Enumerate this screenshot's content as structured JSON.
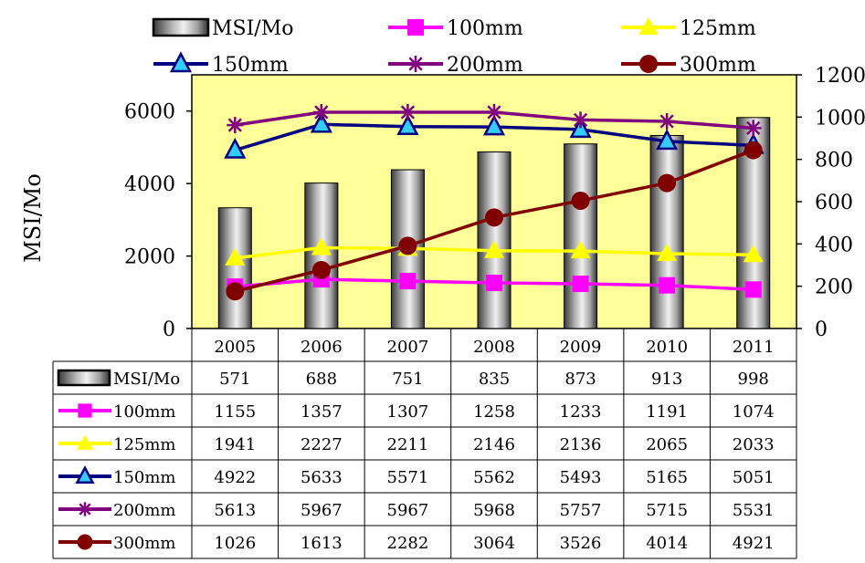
{
  "chart_data": {
    "type": "bar",
    "categories": [
      "2005",
      "2006",
      "2007",
      "2008",
      "2009",
      "2010",
      "2011"
    ],
    "ylabel": "MSI/Mo",
    "y_left": {
      "ticks": [
        "0",
        "2000",
        "4000",
        "6000"
      ],
      "range": [
        0,
        7000
      ]
    },
    "y_right": {
      "ticks": [
        "0",
        "200",
        "400",
        "600",
        "800",
        "1000",
        "1200"
      ],
      "range": [
        0,
        1200
      ]
    },
    "grid": false,
    "legend_position": "top",
    "plot_background": "#ffff99",
    "series": [
      {
        "name": "MSI/Mo",
        "kind": "bar",
        "axis": "right",
        "color": "#808080",
        "marker": "box",
        "values": [
          571,
          688,
          751,
          835,
          873,
          913,
          998
        ]
      },
      {
        "name": "100mm",
        "kind": "line",
        "axis": "left",
        "color": "#ff00ff",
        "marker": "square",
        "values": [
          1155,
          1357,
          1307,
          1258,
          1233,
          1191,
          1074
        ]
      },
      {
        "name": "125mm",
        "kind": "line",
        "axis": "left",
        "color": "#ffff00",
        "marker": "triangle",
        "values": [
          1941,
          2227,
          2211,
          2146,
          2136,
          2065,
          2033
        ]
      },
      {
        "name": "150mm",
        "kind": "line",
        "axis": "left",
        "color": "#000080",
        "marker": "triangle-cyan",
        "values": [
          4922,
          5633,
          5571,
          5562,
          5493,
          5165,
          5051
        ]
      },
      {
        "name": "200mm",
        "kind": "line",
        "axis": "left",
        "color": "#800080",
        "marker": "star",
        "values": [
          5613,
          5967,
          5967,
          5968,
          5757,
          5715,
          5531
        ]
      },
      {
        "name": "300mm",
        "kind": "line",
        "axis": "left",
        "color": "#800000",
        "marker": "circle",
        "values": [
          1026,
          1613,
          2282,
          3064,
          3526,
          4014,
          4921
        ]
      }
    ]
  }
}
